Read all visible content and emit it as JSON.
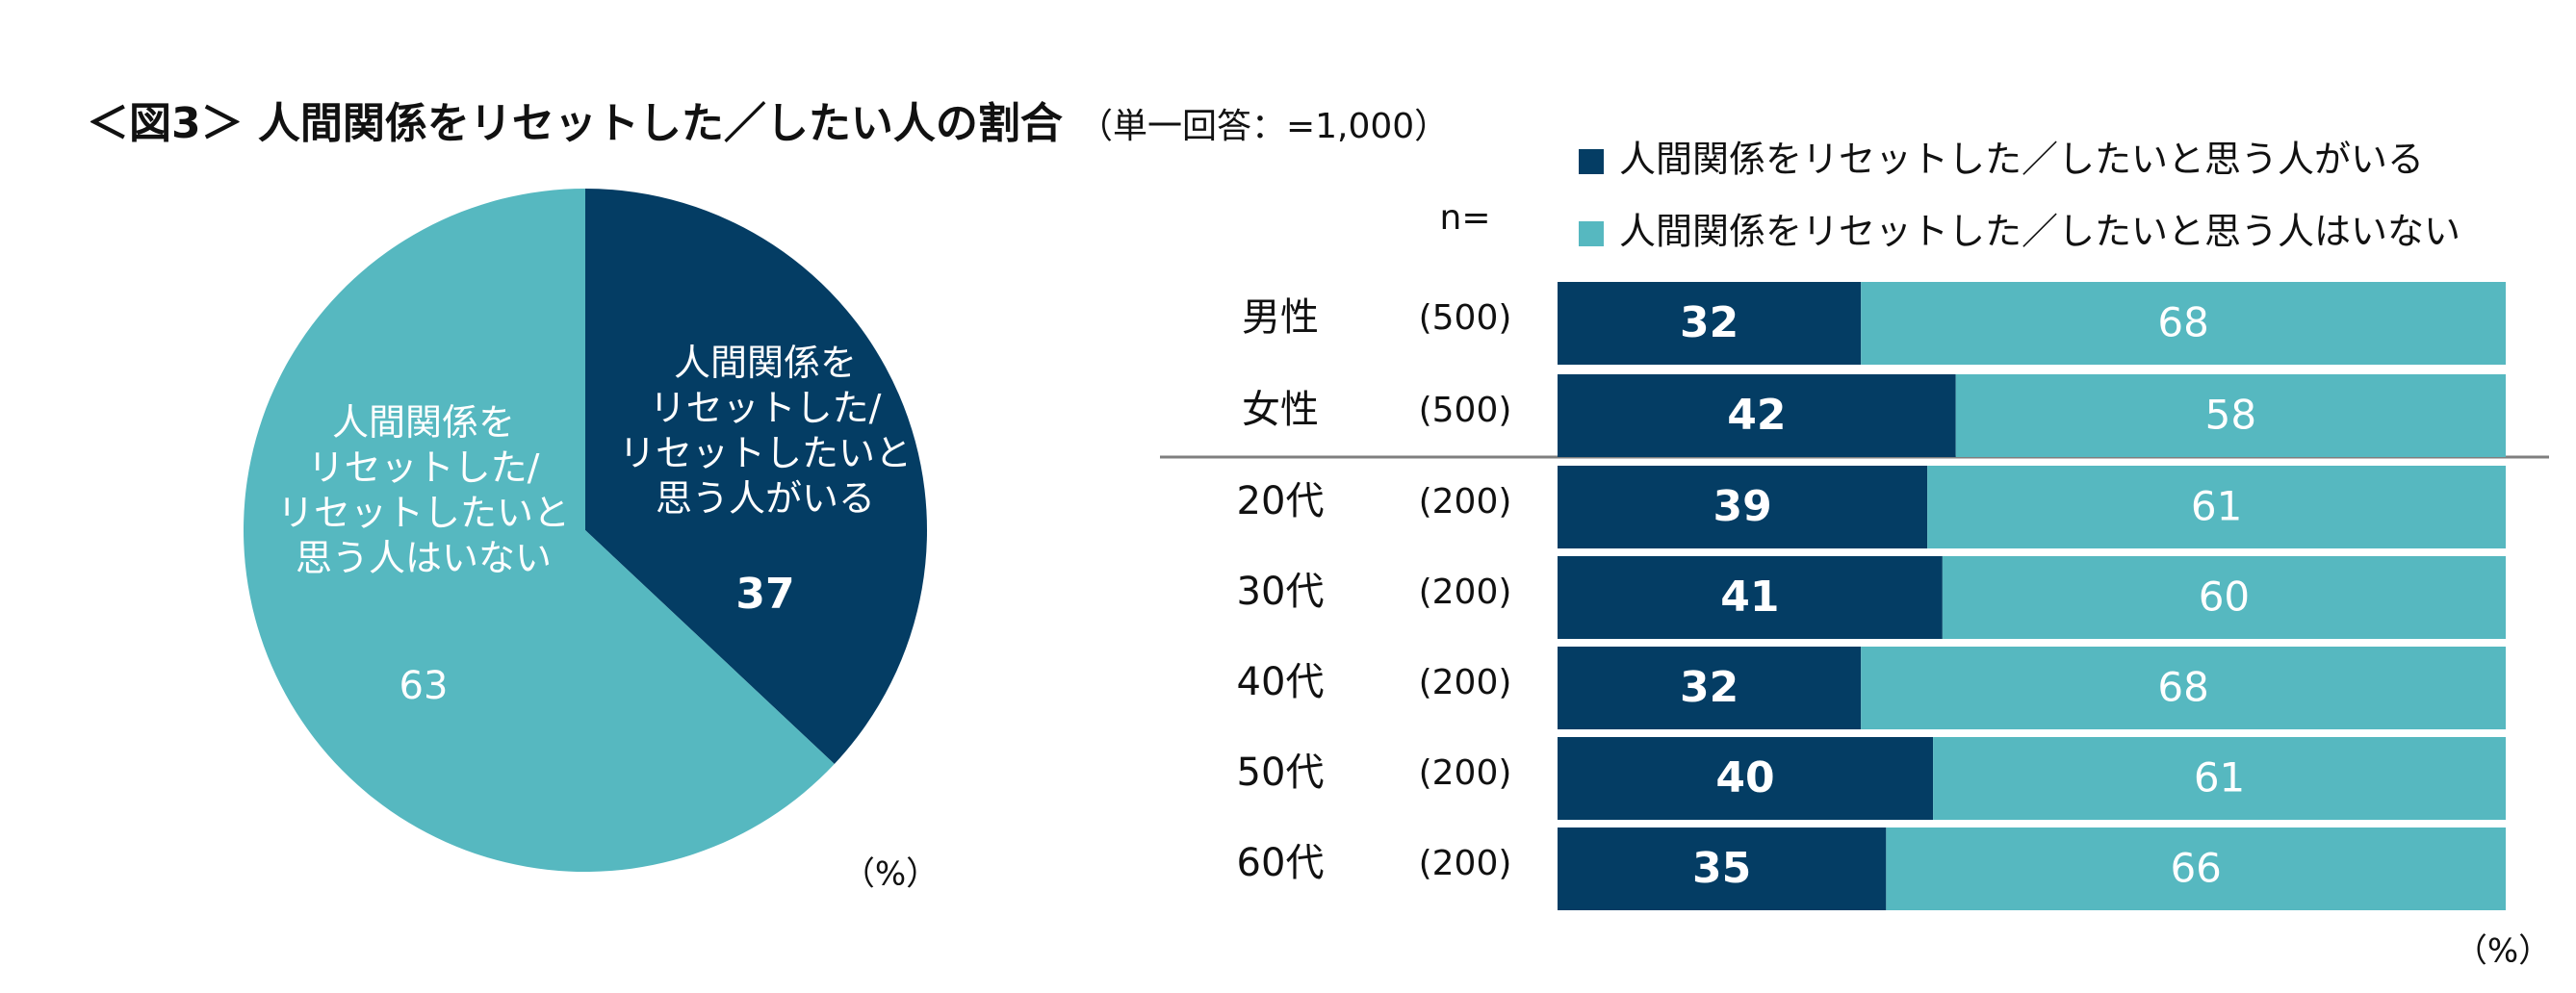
{
  "title": "＜図3＞ 人間関係をリセットした／したい人の割合",
  "subtitle": "（単一回答：=1,000）",
  "colors": {
    "dark": "#043d64",
    "light": "#56b8c0",
    "divider": "#7f7f7f",
    "text": "#111111",
    "white": "#ffffff"
  },
  "chart_data": [
    {
      "type": "pie",
      "unit_label": "（%）",
      "slices": [
        {
          "name": "人間関係を\nリセットした/\nリセットしたいと\n思う人がいる",
          "value": 37,
          "color": "#043d64"
        },
        {
          "name": "人間関係を\nリセットした/\nリセットしたいと\n思う人はいない",
          "value": 63,
          "color": "#56b8c0"
        }
      ]
    },
    {
      "type": "bar",
      "orientation": "horizontal",
      "stacked": true,
      "n_label": "n=",
      "unit_label": "（%）",
      "categories": [
        "男性",
        "女性",
        "20代",
        "30代",
        "40代",
        "50代",
        "60代"
      ],
      "n": [
        "(500)",
        "(500)",
        "(200)",
        "(200)",
        "(200)",
        "(200)",
        "(200)"
      ],
      "series": [
        {
          "name": "人間関係をリセットした／したいと思う人がいる",
          "color": "#043d64",
          "values": [
            32,
            42,
            39,
            41,
            32,
            40,
            35
          ]
        },
        {
          "name": "人間関係をリセットした／したいと思う人はいない",
          "color": "#56b8c0",
          "values": [
            68,
            58,
            61,
            60,
            68,
            61,
            66
          ]
        }
      ],
      "xlim": [
        0,
        100
      ]
    }
  ]
}
